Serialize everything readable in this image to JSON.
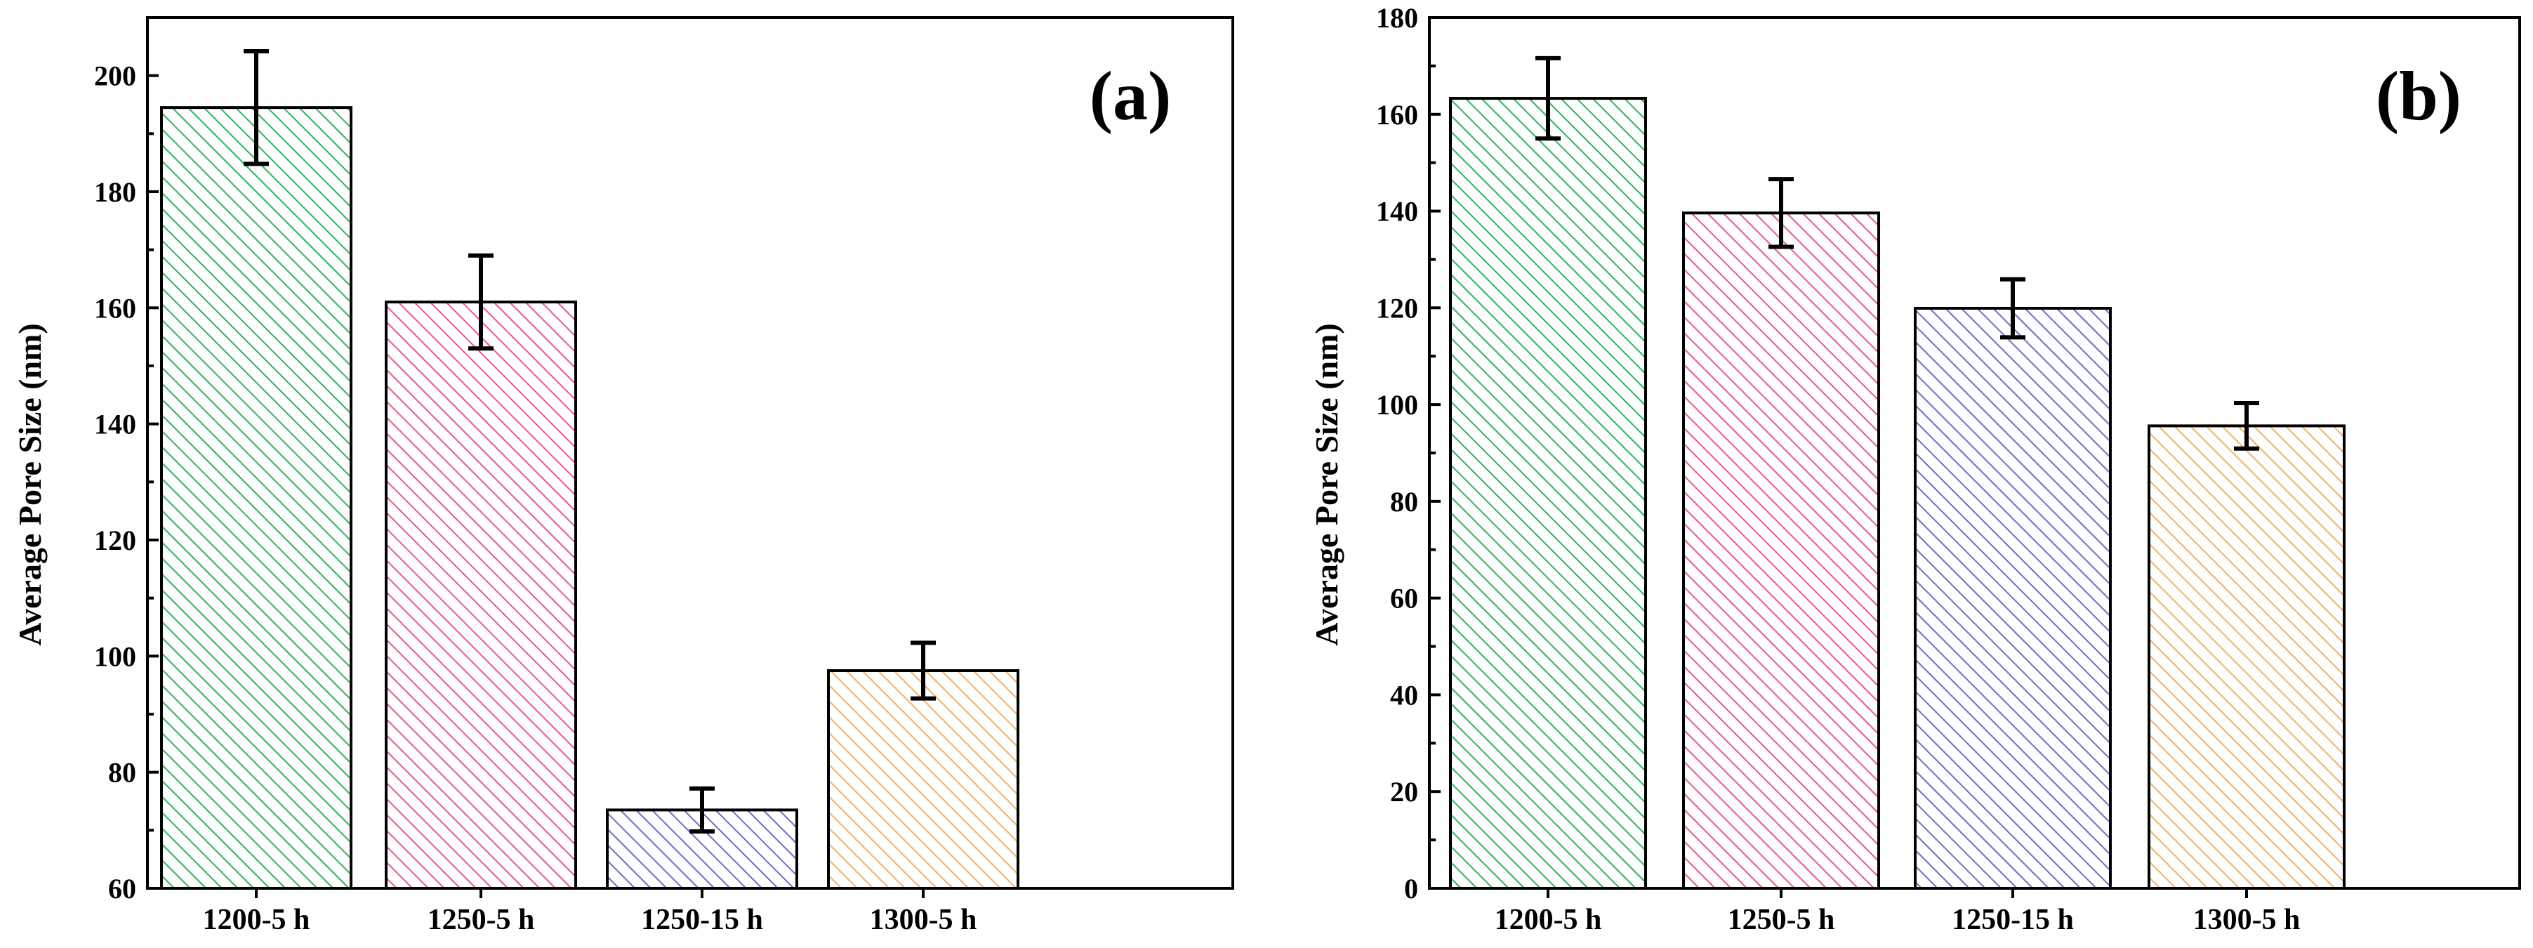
{
  "colors": {
    "green": "#2fb35a",
    "pink": "#e8559b",
    "blue": "#6a6fc4",
    "orange": "#f5b063"
  },
  "chart_data": [
    {
      "type": "bar",
      "panel_label": "(a)",
      "ylabel": "Average Pore Size (nm)",
      "xlabel": "",
      "categories": [
        "1200-5 h",
        "1250-5 h",
        "1250-15 h",
        "1300-5 h"
      ],
      "values": [
        194.5,
        161,
        73.5,
        97.5
      ],
      "errors": [
        9.7,
        8,
        3.7,
        4.8
      ],
      "bar_colors": [
        "#2fb35a",
        "#e8559b",
        "#6a6fc4",
        "#f5b063"
      ],
      "ylim": [
        60,
        210
      ],
      "yticks": [
        60,
        80,
        100,
        120,
        140,
        160,
        180,
        200
      ]
    },
    {
      "type": "bar",
      "panel_label": "(b)",
      "ylabel": "Average Pore Size (nm)",
      "xlabel": "",
      "categories": [
        "1200-5 h",
        "1250-5 h",
        "1250-15 h",
        "1300-5 h"
      ],
      "values": [
        163.3,
        139.6,
        119.9,
        95.6
      ],
      "errors": [
        8.3,
        7,
        6,
        4.7
      ],
      "bar_colors": [
        "#2fb35a",
        "#e8559b",
        "#6a6fc4",
        "#f5b063"
      ],
      "ylim": [
        0,
        180
      ],
      "yticks": [
        0,
        20,
        40,
        60,
        80,
        100,
        120,
        140,
        160,
        180
      ]
    }
  ]
}
